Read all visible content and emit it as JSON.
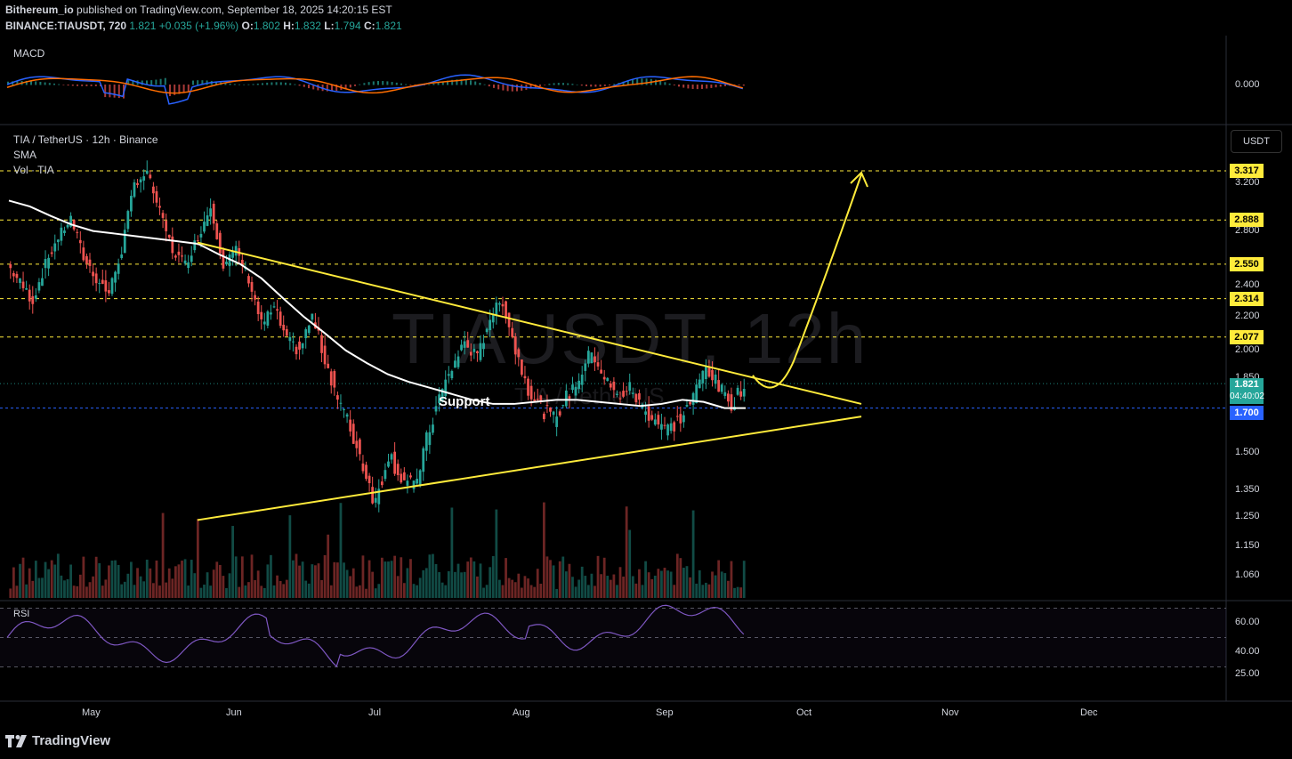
{
  "header": {
    "publisher": "Bithereum_io",
    "publish_text": "published on TradingView.com, September 18, 2025 14:20:15 EST",
    "symbol": "BINANCE:TIAUSDT, 720",
    "last": "1.821",
    "change": "+0.035 (+1.96%)",
    "o_label": "O:",
    "o": "1.802",
    "h_label": "H:",
    "h": "1.832",
    "l_label": "L:",
    "l": "1.794",
    "c_label": "C:",
    "c": "1.821"
  },
  "panes": {
    "macd_label": "MACD",
    "macd_value": "0.000",
    "main_title": "TIA / TetherUS · 12h · Binance",
    "sma_label": "SMA",
    "vol_label": "Vol · TIA",
    "rsi_label": "RSI",
    "currency_button": "USDT"
  },
  "watermark": {
    "symbol": "TIAUSDT, 12h",
    "sub": "TIA / TetherUS"
  },
  "annotation": {
    "support": "Support"
  },
  "price_tags": {
    "current": "1.821",
    "countdown": "04:40:02",
    "sma": "1.700"
  },
  "colors": {
    "up": "#26a69a",
    "down": "#ef5350",
    "trend": "#ffeb3b",
    "sma": "#ffffff",
    "rsi": "#7e57c2",
    "macd": "#2962ff",
    "signal": "#ff6d00",
    "current_tag": "#26a69a",
    "sma_tag": "#2962ff"
  },
  "footer": {
    "brand": "TradingView",
    "logo_icon": "tradingview-logo-icon"
  },
  "chart_data": {
    "type": "candlestick",
    "symbol": "TIAUSDT",
    "interval": "12h",
    "x_ticks": [
      "May",
      "Jun",
      "Jul",
      "Aug",
      "Sep",
      "Oct",
      "Nov",
      "Dec"
    ],
    "y_ticks": [
      "3.200",
      "2.800",
      "2.400",
      "2.200",
      "2.000",
      "1.850",
      "1.500",
      "1.350",
      "1.250",
      "1.150",
      "1.060"
    ],
    "log_scale": true,
    "ylim": [
      1.0,
      3.45
    ],
    "target_levels": [
      "3.317",
      "2.888",
      "2.550",
      "2.314",
      "2.077"
    ],
    "target_values": [
      3.317,
      2.888,
      2.55,
      2.314,
      2.077
    ],
    "rsi_ticks": [
      "60.00",
      "40.00",
      "25.00"
    ],
    "rsi_bands": [
      70,
      50,
      30
    ],
    "ohlc_approx": [
      [
        2.55,
        2.42
      ],
      [
        2.42,
        2.3
      ],
      [
        2.3,
        2.55
      ],
      [
        2.55,
        2.75
      ],
      [
        2.75,
        2.9
      ],
      [
        2.9,
        2.6
      ],
      [
        2.6,
        2.45
      ],
      [
        2.45,
        2.35
      ],
      [
        2.35,
        2.65
      ],
      [
        2.65,
        3.2
      ],
      [
        3.2,
        3.3
      ],
      [
        3.3,
        2.95
      ],
      [
        2.95,
        2.65
      ],
      [
        2.65,
        2.55
      ],
      [
        2.55,
        2.75
      ],
      [
        2.75,
        3.0
      ],
      [
        3.0,
        2.55
      ],
      [
        2.55,
        2.65
      ],
      [
        2.65,
        2.45
      ],
      [
        2.45,
        2.15
      ],
      [
        2.15,
        2.25
      ],
      [
        2.25,
        2.05
      ],
      [
        2.05,
        2.0
      ],
      [
        2.0,
        2.2
      ],
      [
        2.2,
        1.95
      ],
      [
        1.95,
        1.75
      ],
      [
        1.75,
        1.6
      ],
      [
        1.6,
        1.45
      ],
      [
        1.45,
        1.3
      ],
      [
        1.3,
        1.5
      ],
      [
        1.5,
        1.4
      ],
      [
        1.4,
        1.35
      ],
      [
        1.35,
        1.55
      ],
      [
        1.55,
        1.75
      ],
      [
        1.75,
        1.9
      ],
      [
        1.9,
        2.05
      ],
      [
        2.05,
        1.95
      ],
      [
        1.95,
        2.2
      ],
      [
        2.2,
        2.3
      ],
      [
        2.3,
        2.0
      ],
      [
        2.0,
        1.8
      ],
      [
        1.8,
        1.7
      ],
      [
        1.7,
        1.65
      ],
      [
        1.65,
        1.75
      ],
      [
        1.75,
        1.85
      ],
      [
        1.85,
        2.0
      ],
      [
        2.0,
        1.85
      ],
      [
        1.85,
        1.75
      ],
      [
        1.75,
        1.8
      ],
      [
        1.8,
        1.7
      ],
      [
        1.7,
        1.65
      ],
      [
        1.65,
        1.6
      ],
      [
        1.6,
        1.65
      ],
      [
        1.65,
        1.75
      ],
      [
        1.75,
        1.92
      ],
      [
        1.92,
        1.8
      ],
      [
        1.8,
        1.72
      ],
      [
        1.72,
        1.82
      ]
    ],
    "sma_approx": [
      3.05,
      3.0,
      2.92,
      2.85,
      2.8,
      2.78,
      2.76,
      2.74,
      2.72,
      2.7,
      2.62,
      2.55,
      2.45,
      2.32,
      2.2,
      2.1,
      2.0,
      1.93,
      1.87,
      1.83,
      1.8,
      1.77,
      1.74,
      1.72,
      1.72,
      1.73,
      1.74,
      1.74,
      1.73,
      1.72,
      1.71,
      1.72,
      1.74,
      1.73,
      1.7,
      1.7
    ],
    "trendlines": [
      {
        "name": "descending-resistance",
        "from": [
          "2025-05-22",
          2.71
        ],
        "to": [
          "2025-10-16",
          1.72
        ]
      },
      {
        "name": "ascending-support",
        "from": [
          "2025-05-22",
          1.24
        ],
        "to": [
          "2025-10-16",
          1.66
        ]
      }
    ],
    "projection": {
      "from": 1.8,
      "to": 3.317
    }
  }
}
